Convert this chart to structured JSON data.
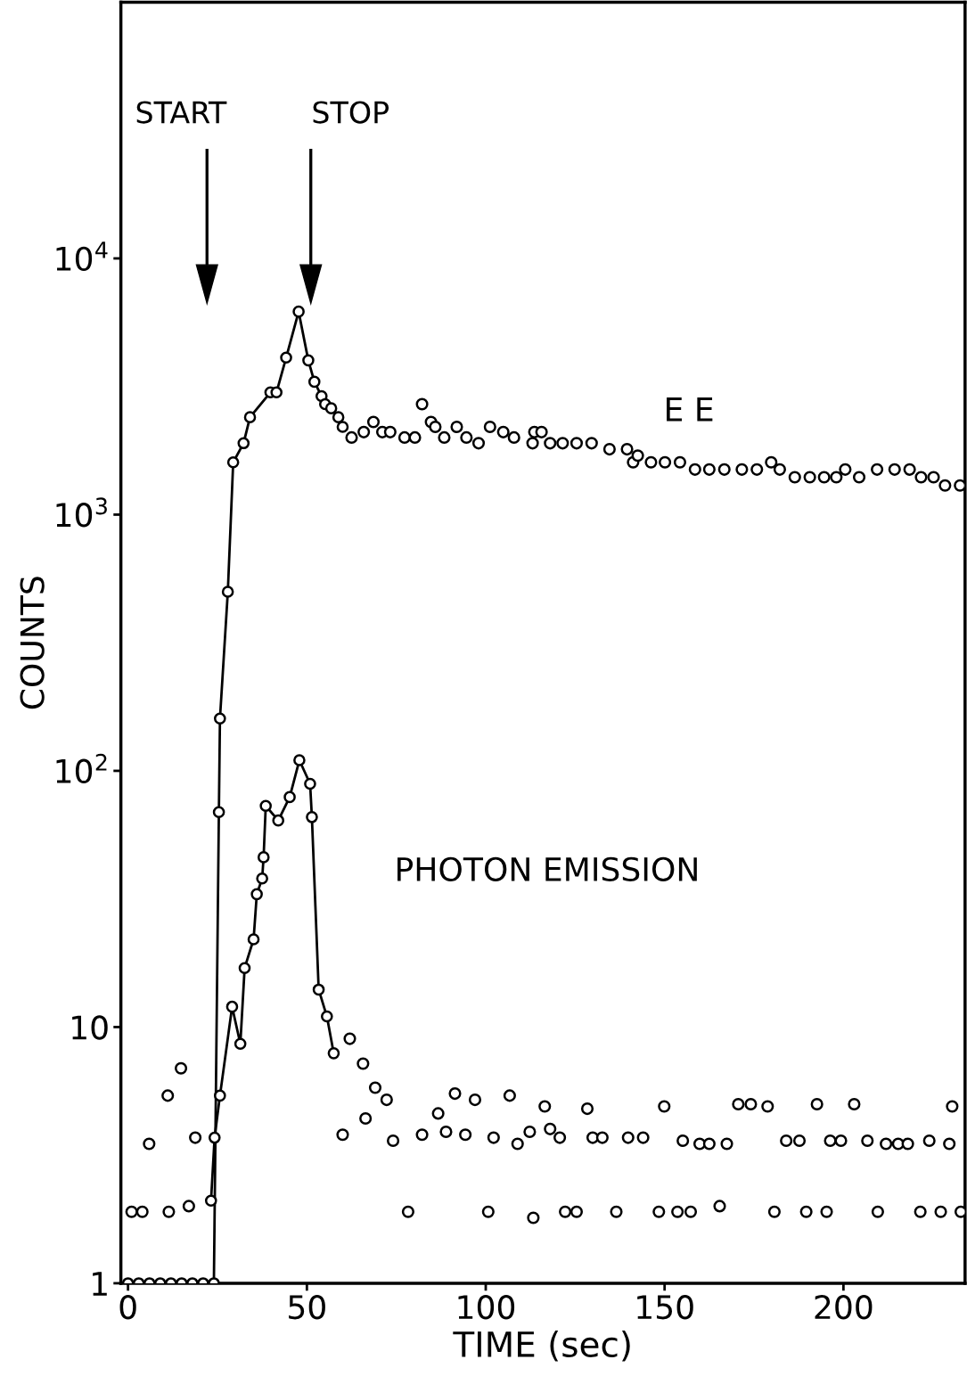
{
  "chart_data": {
    "type": "line",
    "xlabel": "TIME (sec)",
    "ylabel": "COUNTS",
    "log": "y",
    "xlim": [
      -2,
      234
    ],
    "xticks": [
      0,
      50,
      100,
      150,
      200
    ],
    "ylim": [
      1,
      100000
    ],
    "yticks": [
      {
        "value": 1,
        "label": "1"
      },
      {
        "value": 10,
        "label": "10"
      },
      {
        "value": 100,
        "label": "10$^{2}$"
      },
      {
        "value": 1000,
        "label": "10$^{3}$"
      },
      {
        "value": 10000,
        "label": "10$^{4}$"
      }
    ],
    "marker": "circle",
    "line_style": "solid",
    "grid": false,
    "legend": false,
    "annotations": [
      "START",
      "STOP"
    ],
    "series": [
      {
        "name": "E E",
        "type": "line",
        "color": "#000000",
        "x": [
          0,
          3,
          6,
          9,
          12,
          15,
          18,
          21,
          24,
          25.4,
          25.7,
          27.9,
          29.4,
          32.3,
          34.1,
          39.8,
          41.5,
          44.2,
          47.7,
          50.4,
          52.1,
          54.1,
          55.1,
          56.8,
          58.8,
          60.0
        ],
        "values": [
          1,
          1,
          1,
          1,
          1,
          1,
          1,
          1,
          1,
          69,
          160,
          500,
          1600,
          1900,
          2400,
          3000,
          3000,
          4100,
          6200,
          4000,
          3300,
          2900,
          2700,
          2600,
          2400,
          2200
        ]
      },
      {
        "type": "scatter",
        "color": "#000000",
        "x": [
          62.5,
          65.9,
          68.6,
          71.1,
          73.3,
          77.3,
          80.2,
          82.2,
          84.7,
          85.9,
          88.4,
          91.9,
          94.6,
          98.0,
          101.2,
          104.9,
          107.9,
          113.1,
          113.6,
          115.6,
          118.0,
          121.5,
          125.4,
          129.6,
          134.6,
          139.5,
          141.2,
          142.5,
          146.2,
          150.1,
          154.3,
          158.5,
          162.5,
          166.7,
          171.6,
          175.8,
          179.8,
          182.2,
          186.4,
          190.6,
          194.6,
          198.0,
          200.5,
          204.4,
          209.4,
          214.3,
          218.5,
          221.7,
          225.2,
          228.4,
          232.6
        ],
        "values": [
          2000,
          2100,
          2300,
          2100,
          2100,
          2000,
          2000,
          2700,
          2300,
          2200,
          2000,
          2200,
          2000,
          1900,
          2200,
          2100,
          2000,
          1900,
          2100,
          2100,
          1900,
          1900,
          1900,
          1900,
          1800,
          1800,
          1600,
          1700,
          1600,
          1600,
          1600,
          1500,
          1500,
          1500,
          1500,
          1500,
          1600,
          1500,
          1400,
          1400,
          1400,
          1400,
          1500,
          1400,
          1500,
          1500,
          1500,
          1400,
          1400,
          1300,
          1300
        ]
      },
      {
        "name": "PHOTON EMISSION",
        "type": "line",
        "color": "#000000",
        "x": [
          23.2,
          24.2,
          25.7,
          29.1,
          31.4,
          32.6,
          35.1,
          36.0,
          37.5,
          37.9,
          38.5,
          42.0,
          45.2,
          47.9,
          50.9,
          51.4,
          53.3,
          55.6,
          57.5
        ],
        "values": [
          2.1,
          3.7,
          5.4,
          12,
          8.6,
          17,
          22,
          33,
          38,
          46,
          73,
          64,
          79,
          110,
          89,
          66,
          14,
          11,
          7.9
        ]
      },
      {
        "type": "scatter",
        "color": "#000000",
        "x": [
          1,
          4,
          5.9,
          11.1,
          11.4,
          14.8,
          17.0,
          18.8,
          60.0,
          62.0,
          65.7,
          66.4,
          69.1,
          72.3,
          74.1,
          78.3,
          82.2,
          86.7,
          88.9,
          91.4,
          94.3,
          97.0,
          100.7,
          102.2,
          106.7,
          108.9,
          112.3,
          113.3,
          116.5,
          118.0,
          120.7,
          122.2,
          125.4,
          128.4,
          129.9,
          132.6,
          136.5,
          139.8,
          144.0,
          148.4,
          149.9,
          153.6,
          155.1,
          157.3,
          159.8,
          162.5,
          165.4,
          167.4,
          170.6,
          174.1,
          178.8,
          180.7,
          184.0,
          187.7,
          189.6,
          192.6,
          195.3,
          196.3,
          199.3,
          203.0,
          206.7,
          209.6,
          211.9,
          215.3,
          218.0,
          221.5,
          224.0,
          227.2,
          229.6,
          230.4,
          232.8
        ],
        "values": [
          1.9,
          1.9,
          3.5,
          5.4,
          1.9,
          6.9,
          2.0,
          3.7,
          3.8,
          9.0,
          7.2,
          4.4,
          5.8,
          5.2,
          3.6,
          1.9,
          3.8,
          4.6,
          3.9,
          5.5,
          3.8,
          5.2,
          1.9,
          3.7,
          5.4,
          3.5,
          3.9,
          1.8,
          4.9,
          4.0,
          3.7,
          1.9,
          1.9,
          4.8,
          3.7,
          3.7,
          1.9,
          3.7,
          3.7,
          1.9,
          4.9,
          1.9,
          3.6,
          1.9,
          3.5,
          3.5,
          2.0,
          3.5,
          5.0,
          5.0,
          4.9,
          1.9,
          3.6,
          3.6,
          1.9,
          5.0,
          1.9,
          3.6,
          3.6,
          5.0,
          3.6,
          1.9,
          3.5,
          3.5,
          3.5,
          1.9,
          3.6,
          1.9,
          3.5,
          4.9,
          1.9
        ]
      }
    ]
  }
}
